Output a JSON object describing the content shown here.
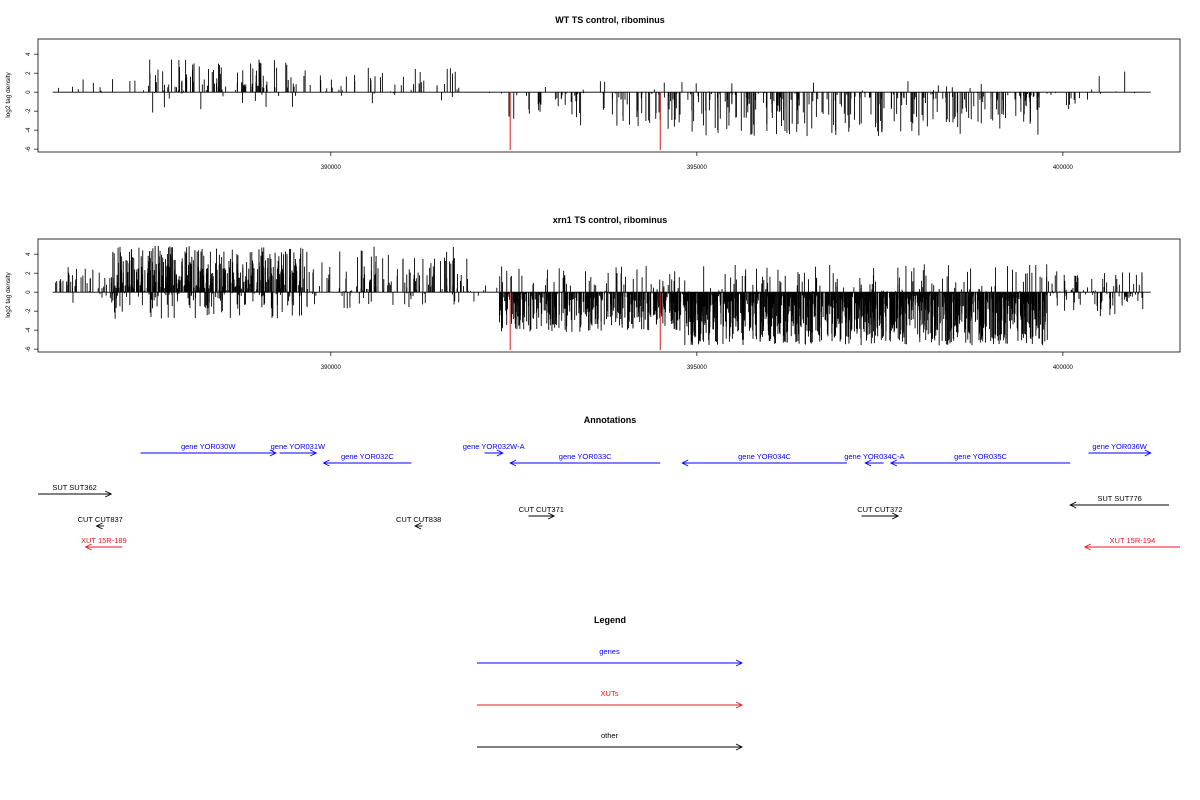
{
  "chart_data": [
    {
      "type": "bar",
      "title": "WT TS control, ribominus",
      "ylabel": "log2 tag density",
      "xlim": [
        386000,
        401600
      ],
      "ylim": [
        -6.3,
        5.6
      ],
      "x_ticks": [
        390000,
        395000,
        400000
      ],
      "y_ticks": [
        -6,
        -4,
        -2,
        0,
        2,
        4
      ],
      "grid": false,
      "baseline_range": [
        386200,
        401200
      ],
      "highlight_color": "#e31a1c",
      "highlight_bars": [
        {
          "x": 392450,
          "y": -6.1
        },
        {
          "x": 394500,
          "y": -6.1
        }
      ],
      "segments": [
        {
          "from": 386200,
          "to": 387500,
          "density": 0.01,
          "pos_max": 1.6,
          "neg_max": 0.3,
          "pos_frac": 0.9
        },
        {
          "from": 387500,
          "to": 389500,
          "density": 0.06,
          "pos_max": 3.5,
          "neg_max": 2.2,
          "pos_frac": 0.88
        },
        {
          "from": 389500,
          "to": 391800,
          "density": 0.025,
          "pos_max": 2.8,
          "neg_max": 1.6,
          "pos_frac": 0.78
        },
        {
          "from": 391800,
          "to": 392400,
          "density": 0.004,
          "pos_max": 0.5,
          "neg_max": 0.5,
          "pos_frac": 0.5
        },
        {
          "from": 392400,
          "to": 394600,
          "density": 0.035,
          "pos_max": 1.6,
          "neg_max": 3.6,
          "pos_frac": 0.08
        },
        {
          "from": 394600,
          "to": 399700,
          "density": 0.06,
          "pos_max": 1.2,
          "neg_max": 4.8,
          "pos_frac": 0.06
        },
        {
          "from": 399700,
          "to": 400400,
          "density": 0.02,
          "pos_max": 0.6,
          "neg_max": 2.0,
          "pos_frac": 0.2
        },
        {
          "from": 400400,
          "to": 401100,
          "density": 0.01,
          "pos_max": 2.2,
          "neg_max": 1.6,
          "pos_frac": 0.7
        }
      ]
    },
    {
      "type": "bar",
      "title": "xrn1 TS control, ribominus",
      "ylabel": "log2 tag density",
      "xlim": [
        386000,
        401600
      ],
      "ylim": [
        -6.3,
        5.6
      ],
      "x_ticks": [
        390000,
        395000,
        400000
      ],
      "y_ticks": [
        -6,
        -4,
        -2,
        0,
        2,
        4
      ],
      "grid": false,
      "baseline_range": [
        386200,
        401200
      ],
      "highlight_color": "#e31a1c",
      "highlight_bars": [
        {
          "x": 392450,
          "y": -6.1
        },
        {
          "x": 394500,
          "y": -6.1
        }
      ],
      "segments": [
        {
          "from": 386200,
          "to": 387000,
          "density": 0.06,
          "pos_max": 2.8,
          "neg_max": 1.6,
          "pos_frac": 0.8
        },
        {
          "from": 387000,
          "to": 389600,
          "density": 0.22,
          "pos_max": 4.9,
          "neg_max": 2.8,
          "pos_frac": 0.82
        },
        {
          "from": 389600,
          "to": 391900,
          "density": 0.07,
          "pos_max": 4.8,
          "neg_max": 1.8,
          "pos_frac": 0.8
        },
        {
          "from": 391900,
          "to": 392300,
          "density": 0.02,
          "pos_max": 1.0,
          "neg_max": 2.2,
          "pos_frac": 0.4
        },
        {
          "from": 392300,
          "to": 394800,
          "density": 0.2,
          "pos_max": 2.8,
          "neg_max": 4.2,
          "pos_frac": 0.1
        },
        {
          "from": 394800,
          "to": 399800,
          "density": 0.3,
          "pos_max": 3.0,
          "neg_max": 5.6,
          "pos_frac": 0.08
        },
        {
          "from": 399800,
          "to": 401100,
          "density": 0.08,
          "pos_max": 2.2,
          "neg_max": 2.6,
          "pos_frac": 0.5
        }
      ]
    }
  ],
  "annotations": {
    "title": "Annotations",
    "xlim": [
      386000,
      401600
    ],
    "features": [
      {
        "label": "gene YOR030W",
        "from": 387400,
        "to": 389250,
        "row": 0,
        "strand": "+",
        "color": "#0000ff"
      },
      {
        "label": "gene YOR031W",
        "from": 389300,
        "to": 389800,
        "row": 0,
        "strand": "+",
        "color": "#0000ff"
      },
      {
        "label": "gene YOR032C",
        "from": 389900,
        "to": 391100,
        "row": 1,
        "strand": "-",
        "color": "#0000ff"
      },
      {
        "label": "gene YOR032W-A",
        "from": 392100,
        "to": 392350,
        "row": 0,
        "strand": "+",
        "color": "#0000ff"
      },
      {
        "label": "gene YOR033C",
        "from": 392450,
        "to": 394500,
        "row": 1,
        "strand": "-",
        "color": "#0000ff"
      },
      {
        "label": "gene YOR034C",
        "from": 394800,
        "to": 397050,
        "row": 1,
        "strand": "-",
        "color": "#0000ff"
      },
      {
        "label": "gene YOR034C-A",
        "from": 397300,
        "to": 397550,
        "row": 1,
        "strand": "-",
        "color": "#0000ff"
      },
      {
        "label": "gene YOR035C",
        "from": 397650,
        "to": 400100,
        "row": 1,
        "strand": "-",
        "color": "#0000ff"
      },
      {
        "label": "gene YOR036W",
        "from": 400350,
        "to": 401200,
        "row": 0,
        "strand": "+",
        "color": "#0000ff"
      },
      {
        "label": "SUT SUT362",
        "from": 386000,
        "to": 387000,
        "row": 3,
        "strand": "+",
        "color": "#000000"
      },
      {
        "label": "SUT SUT776",
        "from": 400100,
        "to": 401450,
        "row": 4,
        "strand": "-",
        "color": "#000000"
      },
      {
        "label": "CUT CUT837",
        "from": 386800,
        "to": 386900,
        "row": 6,
        "strand": "-",
        "color": "#000000"
      },
      {
        "label": "CUT CUT838",
        "from": 391150,
        "to": 391250,
        "row": 6,
        "strand": "-",
        "color": "#000000"
      },
      {
        "label": "CUT CUT371",
        "from": 392700,
        "to": 393050,
        "row": 5,
        "strand": "+",
        "color": "#000000"
      },
      {
        "label": "CUT CUT372",
        "from": 397250,
        "to": 397750,
        "row": 5,
        "strand": "+",
        "color": "#000000"
      },
      {
        "label": "XUT 15R-189",
        "from": 386650,
        "to": 387150,
        "row": 7,
        "strand": "-",
        "color": "#e31a1c"
      },
      {
        "label": "XUT 15R-194",
        "from": 400300,
        "to": 401600,
        "row": 7,
        "strand": "-",
        "color": "#e31a1c"
      }
    ]
  },
  "legend": {
    "title": "Legend",
    "items": [
      {
        "label": "genes",
        "color": "#0000ff"
      },
      {
        "label": "XUTs",
        "color": "#e31a1c"
      },
      {
        "label": "other",
        "color": "#000000"
      }
    ]
  }
}
